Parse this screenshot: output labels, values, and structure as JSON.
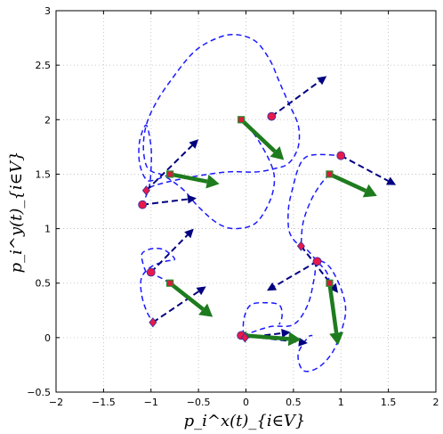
{
  "chart_data": {
    "type": "scatter",
    "xlabel": "p_i^x(t)_{i∈V}",
    "ylabel": "p_i^y(t)_{i∈V}",
    "xlim": [
      -2,
      2
    ],
    "ylim": [
      -0.5,
      3
    ],
    "x_ticks": [
      "−2",
      "−1.5",
      "−1",
      "−0.5",
      "0",
      "0.5",
      "1",
      "1.5",
      "2"
    ],
    "y_ticks": [
      "−0.5",
      "0",
      "0.5",
      "1",
      "1.5",
      "2",
      "2.5",
      "3"
    ],
    "grid": true,
    "colors": {
      "trajectory": "#1a1aff",
      "current_velocity_arrow": "#000080",
      "initial_velocity_arrow": "#1e7b1e",
      "marker_fill": "#e8194b",
      "square_marker_fill": "#d21e3c",
      "square_marker_edge": "#2a8a2a",
      "marker_edge": "#3030a0"
    },
    "initial_positions": [
      {
        "x": -0.05,
        "y": 2.0
      },
      {
        "x": -0.8,
        "y": 1.5
      },
      {
        "x": 0.88,
        "y": 1.5
      },
      {
        "x": -0.8,
        "y": 0.5
      },
      {
        "x": 0.88,
        "y": 0.5
      },
      {
        "x": -0.03,
        "y": 0.02
      }
    ],
    "initial_velocity_arrows": [
      {
        "x0": -0.05,
        "y0": 2.0,
        "x1": 0.4,
        "y1": 1.63
      },
      {
        "x0": -0.8,
        "y0": 1.5,
        "x1": -0.28,
        "y1": 1.41
      },
      {
        "x0": 0.88,
        "y0": 1.5,
        "x1": 1.38,
        "y1": 1.3
      },
      {
        "x0": -0.8,
        "y0": 0.5,
        "x1": -0.35,
        "y1": 0.19
      },
      {
        "x0": 0.88,
        "y0": 0.5,
        "x1": 0.97,
        "y1": -0.07
      },
      {
        "x0": -0.03,
        "y0": 0.02,
        "x1": 0.58,
        "y1": -0.02
      }
    ],
    "final_positions": [
      {
        "x": 0.27,
        "y": 2.03,
        "marker": "circle"
      },
      {
        "x": 1.0,
        "y": 1.67,
        "marker": "circle"
      },
      {
        "x": -1.09,
        "y": 1.22,
        "marker": "circle"
      },
      {
        "x": -1.05,
        "y": 1.35,
        "marker": "diamond"
      },
      {
        "x": -1.0,
        "y": 0.6,
        "marker": "circle"
      },
      {
        "x": -0.98,
        "y": 0.14,
        "marker": "diamond"
      },
      {
        "x": 0.58,
        "y": 0.84,
        "marker": "diamond"
      },
      {
        "x": 0.75,
        "y": 0.7,
        "marker": "circle"
      },
      {
        "x": -0.05,
        "y": 0.02,
        "marker": "circle"
      },
      {
        "x": -0.01,
        "y": 0.0,
        "marker": "diamond"
      }
    ],
    "current_velocity_arrows": [
      {
        "x0": 0.27,
        "y0": 2.03,
        "x1": 0.85,
        "y1": 2.4
      },
      {
        "x0": 1.0,
        "y0": 1.67,
        "x1": 1.58,
        "y1": 1.4
      },
      {
        "x0": -1.09,
        "y0": 1.22,
        "x1": -0.52,
        "y1": 1.28
      },
      {
        "x0": -1.05,
        "y0": 1.35,
        "x1": -0.5,
        "y1": 1.82
      },
      {
        "x0": -1.0,
        "y0": 0.6,
        "x1": -0.55,
        "y1": 1.0
      },
      {
        "x0": -0.98,
        "y0": 0.14,
        "x1": -0.42,
        "y1": 0.47
      },
      {
        "x0": 0.58,
        "y0": 0.84,
        "x1": 0.97,
        "y1": 0.41
      },
      {
        "x0": 0.75,
        "y0": 0.7,
        "x1": 0.22,
        "y1": 0.43
      },
      {
        "x0": -0.05,
        "y0": 0.02,
        "x1": 0.65,
        "y1": -0.05
      },
      {
        "x0": -0.01,
        "y0": 0.0,
        "x1": 0.47,
        "y1": 0.05
      }
    ],
    "trajectories": [
      [
        [
          -0.05,
          2.0
        ],
        [
          0.1,
          1.85
        ],
        [
          0.25,
          1.62
        ],
        [
          0.3,
          1.45
        ],
        [
          0.25,
          1.25
        ],
        [
          0.1,
          1.05
        ],
        [
          -0.12,
          1.0
        ],
        [
          -0.3,
          1.05
        ],
        [
          -0.5,
          1.2
        ],
        [
          -0.65,
          1.35
        ],
        [
          -0.8,
          1.45
        ],
        [
          -0.9,
          1.5
        ],
        [
          -0.98,
          1.52
        ],
        [
          -1.05,
          1.58
        ],
        [
          -1.08,
          1.75
        ],
        [
          -1.05,
          1.95
        ],
        [
          -0.95,
          2.15
        ],
        [
          -0.8,
          2.35
        ],
        [
          -0.55,
          2.62
        ],
        [
          -0.3,
          2.75
        ],
        [
          -0.1,
          2.78
        ],
        [
          0.1,
          2.72
        ],
        [
          0.25,
          2.55
        ],
        [
          0.35,
          2.35
        ],
        [
          0.45,
          2.15
        ],
        [
          0.55,
          1.95
        ],
        [
          0.55,
          1.75
        ],
        [
          0.45,
          1.6
        ],
        [
          0.3,
          1.55
        ],
        [
          0.1,
          1.52
        ],
        [
          -0.2,
          1.52
        ],
        [
          -0.6,
          1.47
        ],
        [
          -0.95,
          1.4
        ],
        [
          -1.05,
          1.35
        ]
      ],
      [
        [
          0.88,
          1.5
        ],
        [
          0.78,
          1.4
        ],
        [
          0.68,
          1.25
        ],
        [
          0.6,
          1.05
        ],
        [
          0.58,
          0.84
        ]
      ],
      [
        [
          -0.8,
          1.5
        ],
        [
          -0.95,
          1.45
        ],
        [
          -1.05,
          1.45
        ],
        [
          -1.12,
          1.6
        ],
        [
          -1.12,
          1.8
        ],
        [
          -1.05,
          1.95
        ],
        [
          -1.0,
          1.75
        ],
        [
          -1.0,
          1.55
        ],
        [
          -1.02,
          1.38
        ],
        [
          -1.09,
          1.22
        ]
      ],
      [
        [
          -0.03,
          0.02
        ],
        [
          0.25,
          0.1
        ],
        [
          0.5,
          0.12
        ],
        [
          0.65,
          0.3
        ],
        [
          0.72,
          0.55
        ],
        [
          0.75,
          0.7
        ],
        [
          0.88,
          0.65
        ],
        [
          1.0,
          0.45
        ],
        [
          1.05,
          0.25
        ],
        [
          1.0,
          0.05
        ],
        [
          0.9,
          -0.15
        ],
        [
          0.75,
          -0.28
        ],
        [
          0.6,
          -0.3
        ],
        [
          0.55,
          -0.15
        ],
        [
          0.65,
          0.0
        ],
        [
          0.7,
          0.02
        ]
      ],
      [
        [
          0.88,
          0.5
        ],
        [
          0.85,
          0.6
        ],
        [
          0.75,
          0.7
        ],
        [
          0.65,
          0.8
        ],
        [
          0.58,
          0.84
        ],
        [
          0.5,
          0.9
        ],
        [
          0.45,
          1.0
        ],
        [
          0.45,
          1.2
        ],
        [
          0.5,
          1.4
        ],
        [
          0.55,
          1.55
        ],
        [
          0.62,
          1.65
        ],
        [
          0.75,
          1.68
        ],
        [
          1.0,
          1.67
        ]
      ],
      [
        [
          -0.8,
          0.5
        ],
        [
          -0.9,
          0.55
        ],
        [
          -0.98,
          0.58
        ],
        [
          -1.05,
          0.6
        ],
        [
          -1.1,
          0.75
        ],
        [
          -1.05,
          0.8
        ],
        [
          -0.95,
          0.82
        ],
        [
          -0.85,
          0.8
        ],
        [
          -0.75,
          0.72
        ],
        [
          -0.85,
          0.7
        ],
        [
          -1.0,
          0.65
        ],
        [
          -1.1,
          0.55
        ],
        [
          -1.1,
          0.4
        ],
        [
          -1.05,
          0.25
        ],
        [
          -0.98,
          0.14
        ]
      ],
      [
        [
          -0.03,
          0.02
        ],
        [
          -0.02,
          0.18
        ],
        [
          0.05,
          0.3
        ],
        [
          0.2,
          0.32
        ],
        [
          0.35,
          0.3
        ],
        [
          0.38,
          0.2
        ],
        [
          0.35,
          0.12
        ]
      ]
    ]
  }
}
